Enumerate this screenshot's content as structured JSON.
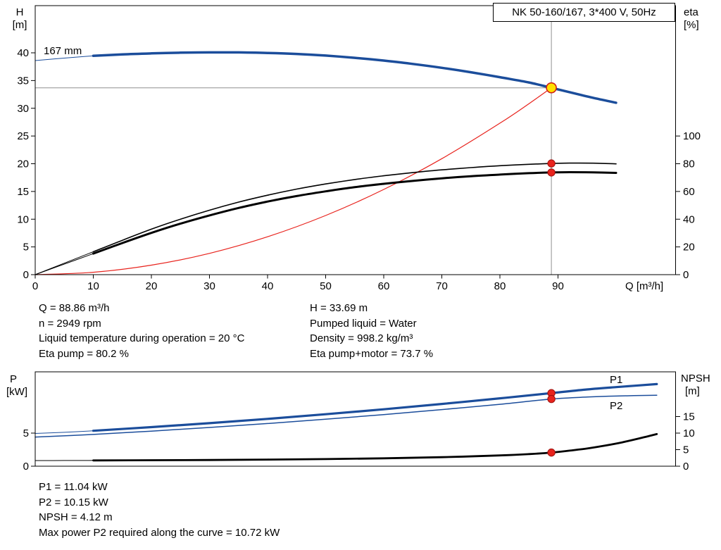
{
  "title": "NK 50-160/167, 3*400 V, 50Hz",
  "labels": {
    "h_1": "H",
    "h_2": "[m]",
    "eta_1": "eta",
    "eta_2": "[%]",
    "q": "Q [m³/h]",
    "impeller": "167 mm",
    "p_1": "P",
    "p_2": "[kW]",
    "npsh_1": "NPSH",
    "npsh_2": "[m]",
    "p1": "P1",
    "p2": "P2"
  },
  "info": {
    "left": [
      "Q = 88.86 m³/h",
      "n = 2949 rpm",
      "Liquid temperature during operation = 20 °C",
      "Eta pump = 80.2 %"
    ],
    "right": [
      "H = 33.69 m",
      "Pumped liquid = Water",
      "Density = 998.2 kg/m³",
      "Eta pump+motor = 73.7 %"
    ]
  },
  "footer": [
    "P1 = 11.04 kW",
    "P2 = 10.15 kW",
    "NPSH = 4.12 m",
    "Max power P2 required along the curve = 10.72 kW"
  ],
  "colors": {
    "blue": "#1b4d9b",
    "red": "#e8231d",
    "red_ring": "#9e120e",
    "yellow": "#ffe000",
    "yellow_ring": "#cf2017",
    "black": "#000000",
    "crosshair": "#8f8f8f"
  },
  "chart_data": [
    {
      "type": "line",
      "title": "NK 50-160/167, 3*400 V, 50Hz",
      "xlabel": "Q [m³/h]",
      "ylabel_left": "H [m]",
      "ylabel_right": "eta [%]",
      "xlim": [
        0,
        110.2
      ],
      "ylim_left": [
        0,
        48.5
      ],
      "ylim_right": [
        0,
        194
      ],
      "x_ticks": [
        0,
        10,
        20,
        30,
        40,
        50,
        60,
        70,
        80,
        90
      ],
      "y_ticks_left": [
        0,
        5,
        10,
        15,
        20,
        25,
        30,
        35,
        40
      ],
      "y_ticks_right": [
        0,
        20,
        40,
        60,
        80,
        100
      ],
      "duty_point": {
        "q": 88.86,
        "h": 33.69
      },
      "series": [
        {
          "name": "system-curve",
          "color": "red",
          "width": 1.2,
          "axis": "left",
          "points": [
            [
              0,
              0
            ],
            [
              10,
              0.43
            ],
            [
              20,
              1.71
            ],
            [
              30,
              3.84
            ],
            [
              40,
              6.83
            ],
            [
              50,
              10.67
            ],
            [
              60,
              15.36
            ],
            [
              70,
              20.91
            ],
            [
              80,
              27.31
            ],
            [
              85,
              30.83
            ],
            [
              88.86,
              33.69
            ]
          ]
        },
        {
          "name": "eta-pump",
          "color": "black",
          "width": 1.6,
          "axis": "right",
          "lead": [
            [
              0,
              0
            ],
            [
              5,
              8.3
            ],
            [
              10,
              16.5
            ]
          ],
          "points": [
            [
              10,
              16.5
            ],
            [
              15,
              24.8
            ],
            [
              20,
              32.8
            ],
            [
              25,
              40.0
            ],
            [
              30,
              46.5
            ],
            [
              35,
              52.3
            ],
            [
              40,
              57.3
            ],
            [
              45,
              61.7
            ],
            [
              50,
              65.4
            ],
            [
              55,
              68.6
            ],
            [
              60,
              71.3
            ],
            [
              65,
              73.6
            ],
            [
              70,
              75.6
            ],
            [
              75,
              77.2
            ],
            [
              80,
              78.6
            ],
            [
              85,
              79.6
            ],
            [
              88.86,
              80.2
            ],
            [
              92,
              80.45
            ],
            [
              96,
              80.4
            ],
            [
              100,
              79.9
            ]
          ]
        },
        {
          "name": "eta-pump-motor",
          "color": "black",
          "width": 3,
          "axis": "right",
          "lead": [
            [
              0,
              0
            ],
            [
              5,
              7.6
            ],
            [
              10,
              15.2
            ]
          ],
          "points": [
            [
              10,
              15.2
            ],
            [
              15,
              22.8
            ],
            [
              20,
              30.1
            ],
            [
              25,
              36.8
            ],
            [
              30,
              42.7
            ],
            [
              35,
              48.1
            ],
            [
              40,
              52.7
            ],
            [
              45,
              56.7
            ],
            [
              50,
              60.1
            ],
            [
              55,
              63.1
            ],
            [
              60,
              65.5
            ],
            [
              65,
              67.6
            ],
            [
              70,
              69.5
            ],
            [
              75,
              71.0
            ],
            [
              80,
              72.2
            ],
            [
              85,
              73.2
            ],
            [
              88.86,
              73.7
            ],
            [
              92,
              73.9
            ],
            [
              96,
              73.8
            ],
            [
              100,
              73.4
            ]
          ]
        },
        {
          "name": "head-167mm",
          "color": "blue",
          "width": 3.5,
          "axis": "left",
          "lead": [
            [
              0,
              38.6
            ],
            [
              5,
              39.05
            ],
            [
              10,
              39.45
            ]
          ],
          "points": [
            [
              10,
              39.45
            ],
            [
              15,
              39.72
            ],
            [
              20,
              39.9
            ],
            [
              25,
              40.02
            ],
            [
              30,
              40.08
            ],
            [
              35,
              40.07
            ],
            [
              40,
              39.98
            ],
            [
              45,
              39.8
            ],
            [
              50,
              39.5
            ],
            [
              55,
              39.1
            ],
            [
              60,
              38.6
            ],
            [
              65,
              38.0
            ],
            [
              70,
              37.3
            ],
            [
              75,
              36.5
            ],
            [
              80,
              35.6
            ],
            [
              85,
              34.65
            ],
            [
              88.86,
              33.69
            ],
            [
              92,
              32.9
            ],
            [
              96,
              31.9
            ],
            [
              100,
              31.0
            ]
          ]
        }
      ],
      "markers": [
        {
          "name": "eta-pump-point",
          "q": 88.86,
          "v": 80.2,
          "axis": "right",
          "style": "red"
        },
        {
          "name": "eta-pump-motor-point",
          "q": 88.86,
          "v": 73.7,
          "axis": "right",
          "style": "red"
        },
        {
          "name": "duty-point",
          "q": 88.86,
          "v": 33.69,
          "axis": "left",
          "style": "yellow"
        }
      ]
    },
    {
      "type": "line",
      "title": "",
      "xlabel": "",
      "ylabel_left": "P [kW]",
      "ylabel_right": "NPSH [m]",
      "xlim": [
        0,
        110.2
      ],
      "ylim_left": [
        0,
        14.3
      ],
      "ylim_right": [
        0,
        28.5
      ],
      "y_ticks_left": [
        0,
        5
      ],
      "y_ticks_right": [
        0,
        5,
        10,
        15
      ],
      "series": [
        {
          "name": "p2",
          "color": "blue",
          "width": 1.5,
          "axis": "left",
          "points": [
            [
              0,
              4.4
            ],
            [
              10,
              4.8
            ],
            [
              20,
              5.3
            ],
            [
              30,
              5.85
            ],
            [
              40,
              6.45
            ],
            [
              50,
              7.1
            ],
            [
              60,
              7.8
            ],
            [
              70,
              8.55
            ],
            [
              80,
              9.35
            ],
            [
              88.86,
              10.15
            ],
            [
              95,
              10.45
            ],
            [
              100,
              10.6
            ],
            [
              107,
              10.72
            ]
          ]
        },
        {
          "name": "p1",
          "color": "blue",
          "width": 3.2,
          "axis": "left",
          "lead": [
            [
              0,
              4.95
            ],
            [
              5,
              5.12
            ],
            [
              10,
              5.35
            ]
          ],
          "points": [
            [
              10,
              5.35
            ],
            [
              20,
              5.9
            ],
            [
              30,
              6.5
            ],
            [
              40,
              7.15
            ],
            [
              50,
              7.85
            ],
            [
              60,
              8.6
            ],
            [
              70,
              9.4
            ],
            [
              80,
              10.25
            ],
            [
              88.86,
              11.04
            ],
            [
              95,
              11.6
            ],
            [
              100,
              11.95
            ],
            [
              107,
              12.4
            ]
          ]
        },
        {
          "name": "npsh",
          "color": "black",
          "width": 2.8,
          "axis": "right",
          "lead": [
            [
              0,
              1.7
            ],
            [
              5,
              1.72
            ],
            [
              10,
              1.75
            ]
          ],
          "points": [
            [
              10,
              1.75
            ],
            [
              20,
              1.8
            ],
            [
              30,
              1.88
            ],
            [
              40,
              2.0
            ],
            [
              50,
              2.15
            ],
            [
              60,
              2.38
            ],
            [
              70,
              2.72
            ],
            [
              80,
              3.25
            ],
            [
              85,
              3.65
            ],
            [
              88.86,
              4.12
            ],
            [
              92,
              4.7
            ],
            [
              95,
              5.35
            ],
            [
              98,
              6.2
            ],
            [
              101,
              7.2
            ],
            [
              104,
              8.4
            ],
            [
              107,
              9.7
            ]
          ]
        }
      ],
      "markers": [
        {
          "name": "p1-point",
          "q": 88.86,
          "v": 11.04,
          "axis": "left",
          "style": "red"
        },
        {
          "name": "p2-point",
          "q": 88.86,
          "v": 10.15,
          "axis": "left",
          "style": "red"
        },
        {
          "name": "npsh-point",
          "q": 88.86,
          "v": 4.12,
          "axis": "right",
          "style": "red"
        }
      ]
    }
  ]
}
